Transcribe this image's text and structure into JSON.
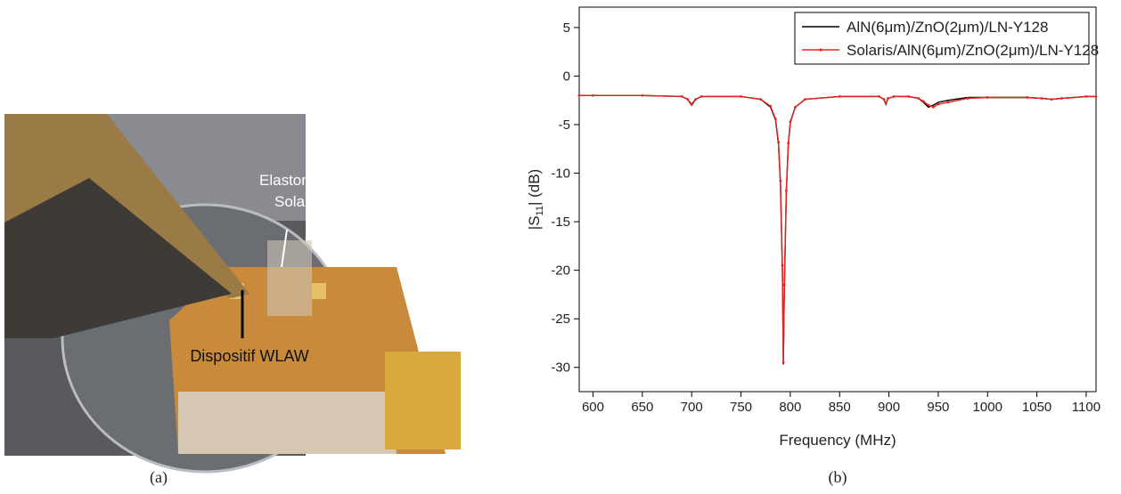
{
  "photo": {
    "labels": [
      "Elastomère",
      "Solaris",
      "Dispositif WLAW"
    ],
    "caption": "(a)"
  },
  "chart_data": {
    "type": "line",
    "caption": "(b)",
    "xlabel": "Frequency (MHz)",
    "ylabel": {
      "text": "|S",
      "sub": "11",
      "after": "| (dB)"
    },
    "xlim": [
      586,
      1110
    ],
    "xticks": [
      600,
      650,
      700,
      750,
      800,
      850,
      900,
      950,
      1000,
      1050,
      1100
    ],
    "ylim": [
      -32.5,
      7.1
    ],
    "yticks": [
      5,
      0,
      -5,
      -10,
      -15,
      -20,
      -25,
      -30
    ],
    "legend": "upper right",
    "x": [
      586,
      600,
      650,
      690,
      696,
      700,
      704,
      710,
      750,
      770,
      780,
      785,
      788,
      790,
      792,
      793,
      794,
      796,
      798,
      800,
      805,
      815,
      850,
      890,
      895,
      897,
      899,
      905,
      920,
      930,
      935,
      940,
      945,
      950,
      960,
      980,
      1000,
      1040,
      1055,
      1065,
      1075,
      1100,
      1110
    ],
    "series": [
      {
        "name": "AlN(6μm)/ZnO(2μm)/LN-Y128",
        "color": "#000000",
        "markers": false,
        "values": [
          -2.0,
          -2.0,
          -2.0,
          -2.1,
          -2.4,
          -3.0,
          -2.4,
          -2.1,
          -2.1,
          -2.4,
          -3.2,
          -4.5,
          -7,
          -11,
          -20,
          -29.7,
          -22,
          -12,
          -7,
          -4.8,
          -3.2,
          -2.4,
          -2.1,
          -2.1,
          -2.4,
          -2.9,
          -2.3,
          -2.1,
          -2.1,
          -2.3,
          -2.7,
          -3.2,
          -3.0,
          -2.7,
          -2.5,
          -2.2,
          -2.2,
          -2.2,
          -2.3,
          -2.4,
          -2.3,
          -2.1,
          -2.1
        ]
      },
      {
        "name": "Solaris/AlN(6μm)/ZnO(2μm)/LN-Y128",
        "color": "#e8231f",
        "markers": true,
        "values": [
          -2.0,
          -2.0,
          -2.0,
          -2.1,
          -2.4,
          -2.9,
          -2.4,
          -2.1,
          -2.1,
          -2.4,
          -3.1,
          -4.4,
          -6.8,
          -10.8,
          -19.5,
          -29.5,
          -21.5,
          -11.8,
          -6.9,
          -4.7,
          -3.2,
          -2.4,
          -2.1,
          -2.1,
          -2.4,
          -2.8,
          -2.3,
          -2.1,
          -2.1,
          -2.3,
          -2.6,
          -3.0,
          -3.2,
          -2.9,
          -2.7,
          -2.3,
          -2.2,
          -2.2,
          -2.3,
          -2.4,
          -2.3,
          -2.1,
          -2.1
        ]
      }
    ]
  }
}
